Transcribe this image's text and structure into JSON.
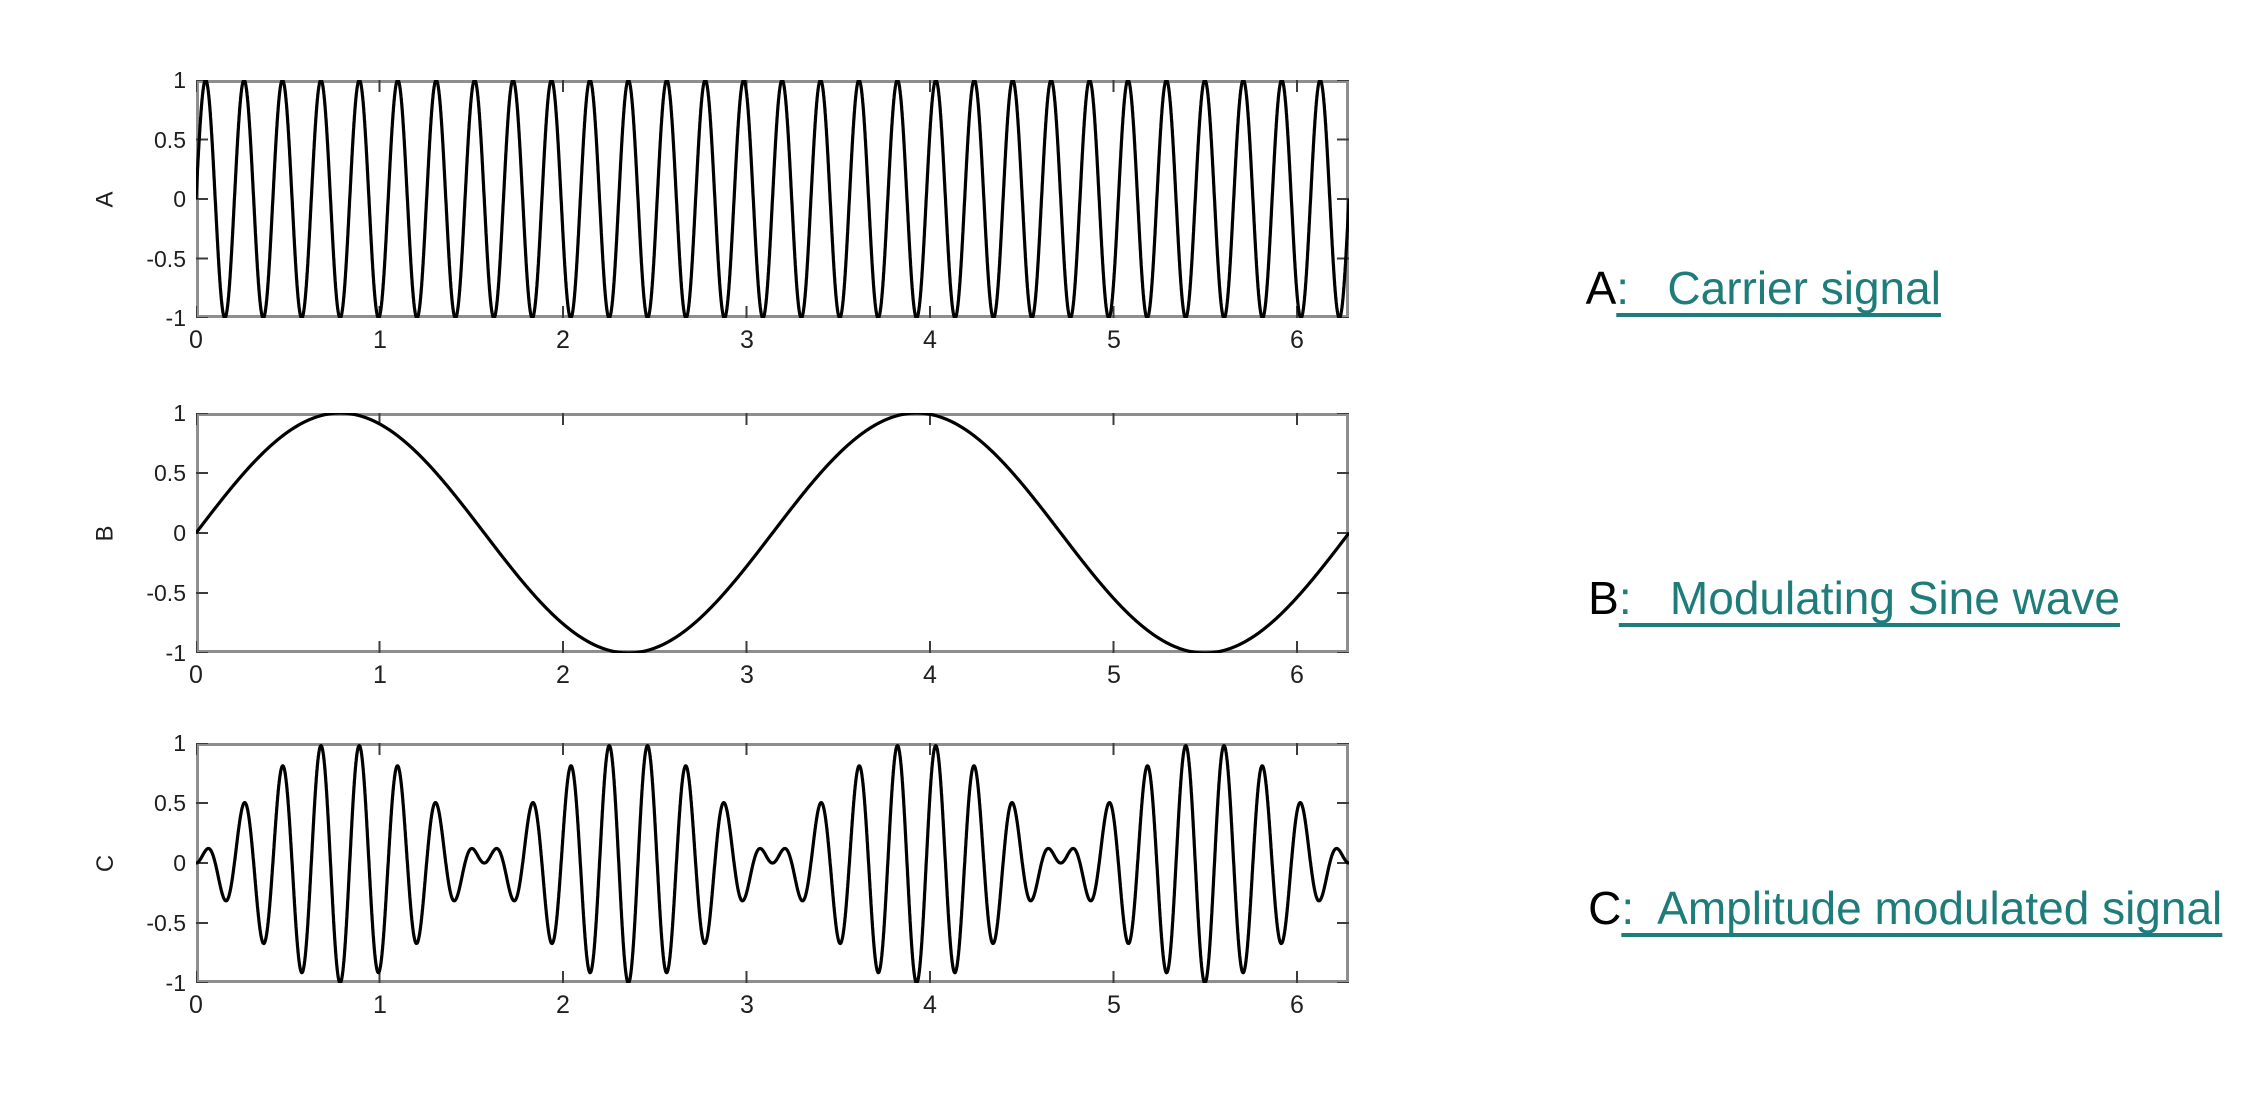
{
  "page": {
    "background": "#ffffff"
  },
  "colors": {
    "curve": "#000000",
    "frame": "#8e8e8e",
    "tick": "#3c3c3c",
    "tick-label": "#1f1f1f",
    "legend-letter": "#000000",
    "legend-teal": "#1e7d7a"
  },
  "legend": {
    "items": [
      {
        "letter": "A",
        "rest": ":   Carrier signal"
      },
      {
        "letter": "B",
        "rest": ":   Modulating Sine wave"
      },
      {
        "letter": "C",
        "rest": ":  Amplitude modulated signal"
      }
    ]
  },
  "chart_data": [
    {
      "id": "A",
      "type": "line",
      "title": "",
      "xlabel": "",
      "ylabel": "A",
      "xlim": [
        0,
        6.2832
      ],
      "ylim": [
        -1,
        1
      ],
      "x_ticks": [
        0,
        1,
        2,
        3,
        4,
        5,
        6
      ],
      "y_ticks": [
        1,
        0.5,
        0,
        -0.5,
        -1
      ],
      "y_tick_labels": [
        "1",
        "0.5",
        "0",
        "-0.5",
        "-1"
      ],
      "grid": false,
      "box": true,
      "legend_position": "none",
      "signal": {
        "formula": "sin(30t)",
        "amplitude": 1,
        "omegas": [
          30
        ]
      }
    },
    {
      "id": "B",
      "type": "line",
      "title": "",
      "xlabel": "",
      "ylabel": "B",
      "xlim": [
        0,
        6.2832
      ],
      "ylim": [
        -1,
        1
      ],
      "x_ticks": [
        0,
        1,
        2,
        3,
        4,
        5,
        6
      ],
      "y_ticks": [
        1,
        0.5,
        0,
        -0.5,
        -1
      ],
      "y_tick_labels": [
        "1",
        "0.5",
        "0",
        "-0.5",
        "-1"
      ],
      "grid": false,
      "box": true,
      "legend_position": "none",
      "signal": {
        "formula": "sin(2t)",
        "amplitude": 1,
        "omegas": [
          2
        ]
      }
    },
    {
      "id": "C",
      "type": "line",
      "title": "",
      "xlabel": "",
      "ylabel": "C",
      "xlim": [
        0,
        6.2832
      ],
      "ylim": [
        -1,
        1
      ],
      "x_ticks": [
        0,
        1,
        2,
        3,
        4,
        5,
        6
      ],
      "y_ticks": [
        1,
        0.5,
        0,
        -0.5,
        -1
      ],
      "y_tick_labels": [
        "1",
        "0.5",
        "0",
        "-0.5",
        "-1"
      ],
      "grid": false,
      "box": true,
      "legend_position": "none",
      "signal": {
        "formula": "sin(2t)*sin(30t)",
        "amplitude": 1,
        "omegas": [
          2,
          30
        ]
      }
    }
  ]
}
